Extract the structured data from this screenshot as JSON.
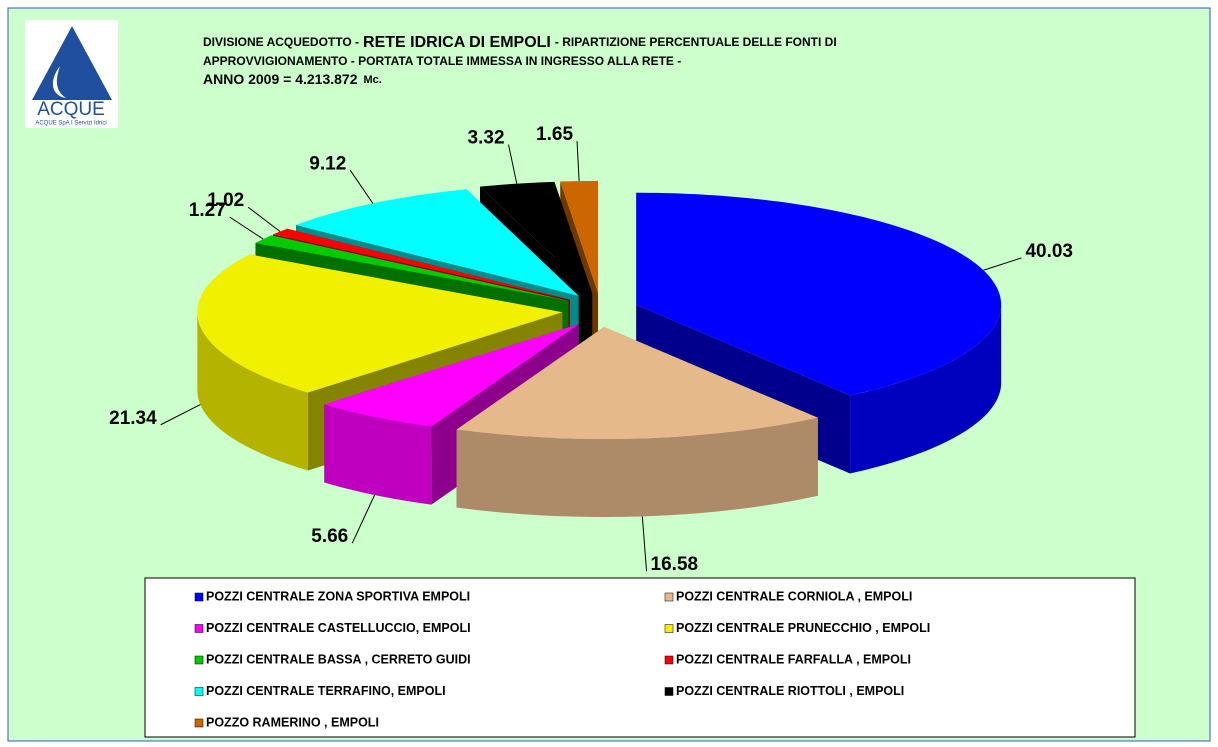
{
  "chart_data": {
    "type": "pie3d",
    "logo": {
      "name": "ACQUE",
      "tagline": "ACQUE SpA I Servizi Idrici"
    },
    "title": [
      "DIVISIONE ACQUEDOTTO -",
      "RETE IDRICA DI EMPOLI",
      "- RIPARTIZIONE PERCENTUALE DELLE FONTI DI"
    ],
    "subtitle": [
      "APPROVVIGIONAMENTO - PORTATA TOTALE IMMESSA IN INGRESSO ALLA RETE -",
      "ANNO 2009  =  4.213.872",
      "Mc."
    ],
    "categories": [
      "POZZI CENTRALE ZONA SPORTIVA  EMPOLI",
      "POZZI CENTRALE CORNIOLA , EMPOLI",
      "POZZI CENTRALE CASTELLUCCIO, EMPOLI",
      "POZZI CENTRALE PRUNECCHIO , EMPOLI",
      "POZZI CENTRALE BASSA , CERRETO GUIDI",
      "POZZI CENTRALE FARFALLA  , EMPOLI",
      "POZZI CENTRALE TERRAFINO, EMPOLI",
      "POZZI CENTRALE RIOTTOLI  , EMPOLI",
      "POZZO RAMERINO , EMPOLI"
    ],
    "values": [
      40.03,
      16.58,
      5.66,
      21.34,
      1.27,
      1.02,
      9.12,
      3.32,
      1.65
    ],
    "colors": [
      "#0000ff",
      "#e6b98a",
      "#ff00ff",
      "#f0f000",
      "#00cc00",
      "#ff0000",
      "#00ffff",
      "#000000",
      "#cc6600"
    ],
    "legend": "bottom"
  }
}
